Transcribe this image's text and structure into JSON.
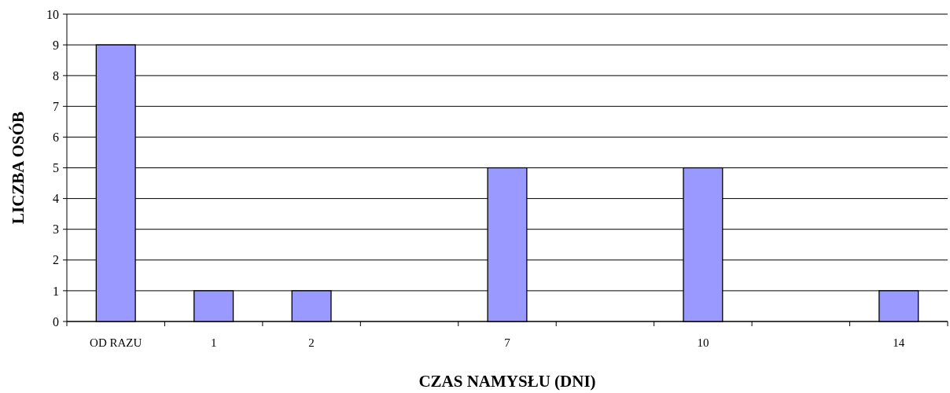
{
  "chart_data": {
    "type": "bar",
    "xlabel": "CZAS NAMYSŁU (DNI)",
    "ylabel": "LICZBA OSÓB",
    "categories": [
      "OD RAZU",
      "1",
      "2",
      null,
      "7",
      null,
      "10",
      null,
      "14"
    ],
    "values": [
      9,
      1,
      1,
      null,
      5,
      null,
      5,
      null,
      1
    ],
    "color": "#9999ff",
    "ylim": [
      0,
      10
    ],
    "yticks": [
      0,
      1,
      2,
      3,
      4,
      5,
      6,
      7,
      8,
      9,
      10
    ],
    "grid": "y"
  }
}
